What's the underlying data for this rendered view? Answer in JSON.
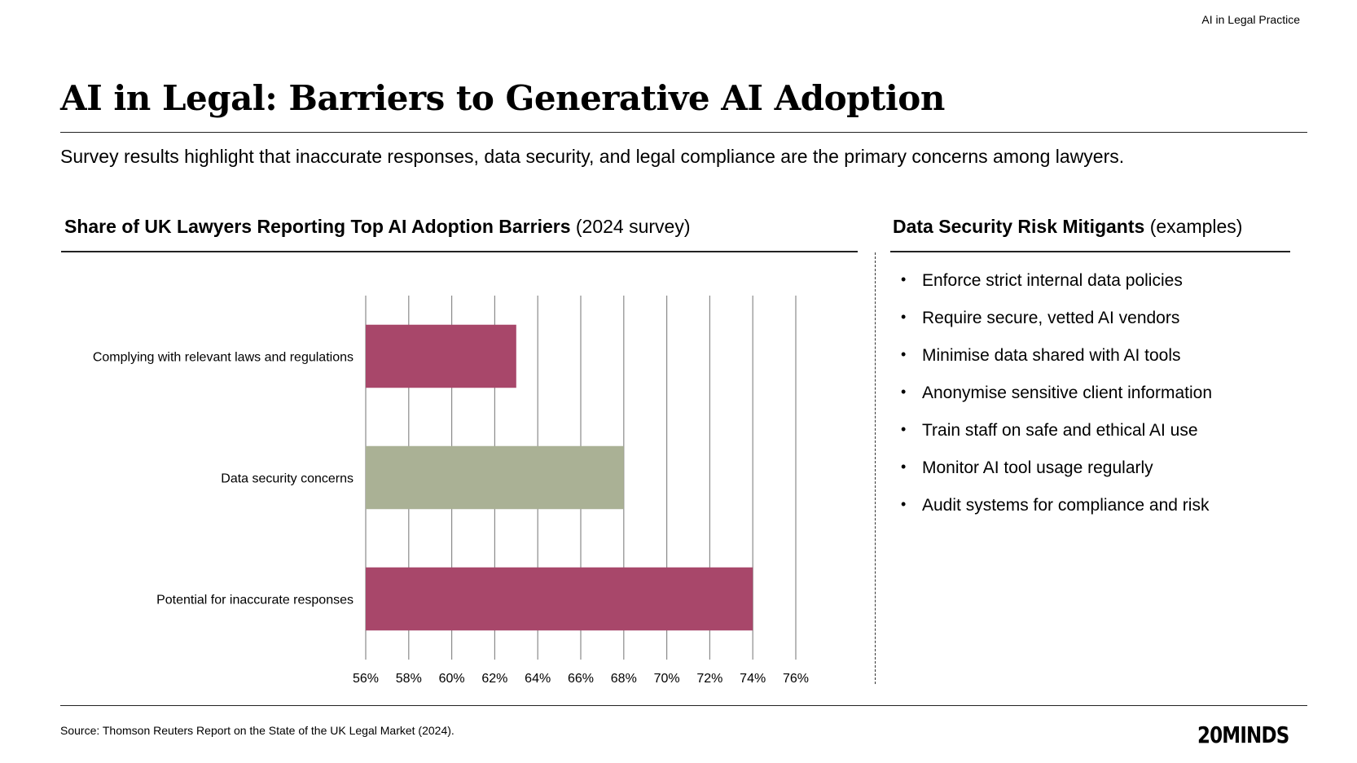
{
  "header": {
    "tag": "AI in Legal Practice"
  },
  "title": "AI in Legal: Barriers to Generative AI Adoption",
  "subtitle": "Survey results highlight that inaccurate responses, data security, and legal compliance are the primary concerns among lawyers.",
  "chart_section": {
    "heading_bold": "Share of UK Lawyers Reporting Top AI Adoption Barriers",
    "heading_regular": " (2024 survey)"
  },
  "mitigants_section": {
    "heading_bold": "Data Security Risk Mitigants",
    "heading_regular": " (examples)",
    "items": [
      "Enforce strict internal data policies",
      "Require secure, vetted AI vendors",
      "Minimise data shared with AI tools",
      "Anonymise sensitive client information",
      "Train staff on safe and ethical AI use",
      "Monitor AI tool usage regularly",
      "Audit systems for compliance and risk"
    ]
  },
  "chart_data": {
    "type": "bar",
    "orientation": "horizontal",
    "categories": [
      "Complying with relevant laws and regulations",
      "Data security concerns",
      "Potential for inaccurate responses"
    ],
    "values": [
      63,
      68,
      74
    ],
    "colors": [
      "#a8476a",
      "#aab195",
      "#a8476a"
    ],
    "xlim": [
      56,
      76
    ],
    "xticks": [
      "56%",
      "58%",
      "60%",
      "62%",
      "64%",
      "66%",
      "68%",
      "70%",
      "72%",
      "74%",
      "76%"
    ],
    "grid": true,
    "legend": "none"
  },
  "footer": {
    "source": "Source: Thomson Reuters Report on the State of the UK Legal Market (2024).",
    "logo": "20MINDS"
  }
}
